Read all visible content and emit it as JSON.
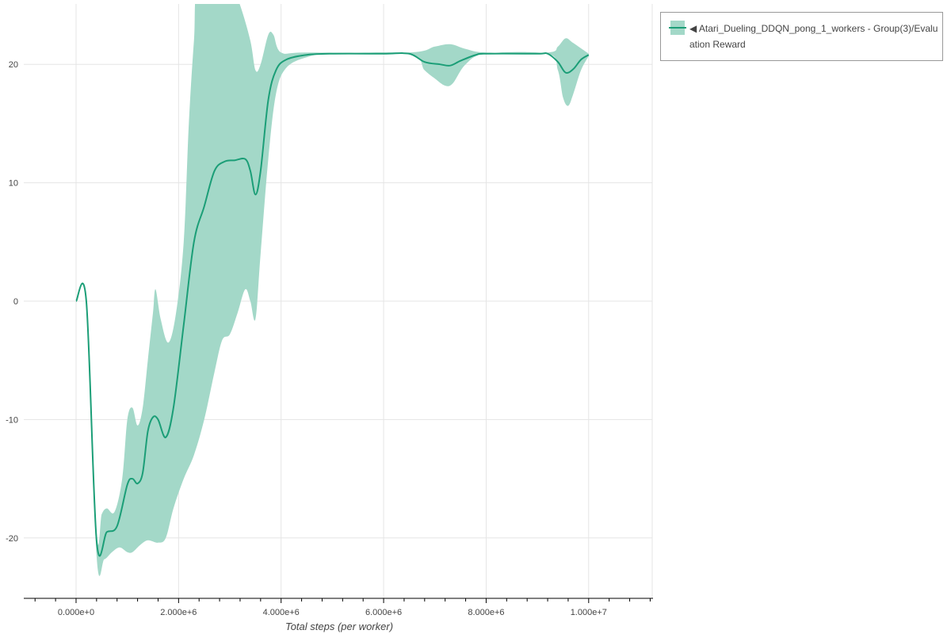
{
  "chart_data": {
    "type": "area",
    "title": "",
    "xlabel": "Total steps (per worker)",
    "ylabel": "",
    "xlim": [
      -1020000,
      11240000
    ],
    "ylim": [
      -25.1,
      25.1
    ],
    "grid": true,
    "legend_placement": "outside-top-right",
    "x_ticks": [
      0,
      2000000,
      4000000,
      6000000,
      8000000,
      10000000
    ],
    "x_tick_labels": [
      "0.000e+0",
      "2.000e+6",
      "4.000e+6",
      "6.000e+6",
      "8.000e+6",
      "1.000e+7"
    ],
    "y_ticks": [
      -20,
      -10,
      0,
      10,
      20
    ],
    "y_tick_labels": [
      "-20",
      "-10",
      "0",
      "10",
      "20"
    ],
    "colors": {
      "line": "#1b9e77",
      "band": "#a3d8c8"
    },
    "series": [
      {
        "name": "◀ Atari_Dueling_DDQN_pong_1_workers - Group(3)/Evaluation Reward",
        "mean": [
          [
            0,
            0
          ],
          [
            200000,
            0
          ],
          [
            400000,
            -20.2
          ],
          [
            600000,
            -19.5
          ],
          [
            800000,
            -19
          ],
          [
            1000000,
            -15.5
          ],
          [
            1100000,
            -15
          ],
          [
            1200000,
            -15.4
          ],
          [
            1300000,
            -14.5
          ],
          [
            1400000,
            -11
          ],
          [
            1500000,
            -9.8
          ],
          [
            1600000,
            -10
          ],
          [
            1750000,
            -11.5
          ],
          [
            1900000,
            -9
          ],
          [
            2100000,
            -2
          ],
          [
            2300000,
            5
          ],
          [
            2500000,
            8
          ],
          [
            2700000,
            11
          ],
          [
            2900000,
            11.8
          ],
          [
            3100000,
            11.9
          ],
          [
            3300000,
            12
          ],
          [
            3400000,
            11
          ],
          [
            3500000,
            9
          ],
          [
            3600000,
            11
          ],
          [
            3750000,
            17
          ],
          [
            3900000,
            19.5
          ],
          [
            4100000,
            20.4
          ],
          [
            4500000,
            20.8
          ],
          [
            5000000,
            20.9
          ],
          [
            6000000,
            20.9
          ],
          [
            6500000,
            20.9
          ],
          [
            6800000,
            20.2
          ],
          [
            7100000,
            20
          ],
          [
            7300000,
            19.9
          ],
          [
            7500000,
            20.3
          ],
          [
            7800000,
            20.8
          ],
          [
            8000000,
            20.9
          ],
          [
            9000000,
            20.9
          ],
          [
            9200000,
            20.9
          ],
          [
            9400000,
            20.2
          ],
          [
            9550000,
            19.3
          ],
          [
            9700000,
            19.6
          ],
          [
            9850000,
            20.4
          ],
          [
            10000000,
            20.8
          ]
        ],
        "upper": [
          [
            0,
            0
          ],
          [
            200000,
            0
          ],
          [
            400000,
            -19.5
          ],
          [
            500000,
            -18
          ],
          [
            600000,
            -17.5
          ],
          [
            750000,
            -17.8
          ],
          [
            900000,
            -15
          ],
          [
            1000000,
            -10
          ],
          [
            1100000,
            -9
          ],
          [
            1200000,
            -10.5
          ],
          [
            1300000,
            -9
          ],
          [
            1400000,
            -5
          ],
          [
            1500000,
            -1
          ],
          [
            1550000,
            1
          ],
          [
            1650000,
            -1.5
          ],
          [
            1800000,
            -3.5
          ],
          [
            1950000,
            -1
          ],
          [
            2100000,
            5
          ],
          [
            2200000,
            15
          ],
          [
            2300000,
            22
          ],
          [
            2400000,
            27
          ],
          [
            3000000,
            27
          ],
          [
            3200000,
            25
          ],
          [
            3400000,
            22
          ],
          [
            3500000,
            19.5
          ],
          [
            3600000,
            20
          ],
          [
            3750000,
            22.5
          ],
          [
            3850000,
            22.5
          ],
          [
            4000000,
            21
          ],
          [
            4500000,
            21
          ],
          [
            6500000,
            21
          ],
          [
            7000000,
            21.5
          ],
          [
            7300000,
            21.7
          ],
          [
            7600000,
            21.3
          ],
          [
            8000000,
            21
          ],
          [
            9200000,
            21
          ],
          [
            9400000,
            21.5
          ],
          [
            9550000,
            22.2
          ],
          [
            9700000,
            21.8
          ],
          [
            10000000,
            20.9
          ]
        ],
        "lower": [
          [
            0,
            0
          ],
          [
            200000,
            0
          ],
          [
            400000,
            -21.5
          ],
          [
            550000,
            -21.8
          ],
          [
            700000,
            -21.2
          ],
          [
            850000,
            -20.8
          ],
          [
            1000000,
            -21.2
          ],
          [
            1100000,
            -21.2
          ],
          [
            1250000,
            -20.6
          ],
          [
            1400000,
            -20.2
          ],
          [
            1600000,
            -20.4
          ],
          [
            1750000,
            -20
          ],
          [
            1900000,
            -17.5
          ],
          [
            2100000,
            -15
          ],
          [
            2300000,
            -13
          ],
          [
            2500000,
            -10
          ],
          [
            2700000,
            -6
          ],
          [
            2850000,
            -3.3
          ],
          [
            3000000,
            -2.8
          ],
          [
            3150000,
            -1
          ],
          [
            3300000,
            1
          ],
          [
            3400000,
            0
          ],
          [
            3500000,
            -1.5
          ],
          [
            3600000,
            4
          ],
          [
            3750000,
            12
          ],
          [
            3900000,
            17.5
          ],
          [
            4100000,
            19.7
          ],
          [
            4500000,
            20.6
          ],
          [
            5000000,
            20.9
          ],
          [
            6500000,
            20.9
          ],
          [
            6800000,
            19.5
          ],
          [
            7000000,
            18.8
          ],
          [
            7200000,
            18.2
          ],
          [
            7350000,
            18.4
          ],
          [
            7600000,
            20
          ],
          [
            8000000,
            20.9
          ],
          [
            9200000,
            20.9
          ],
          [
            9400000,
            19.5
          ],
          [
            9500000,
            17.2
          ],
          [
            9600000,
            16.5
          ],
          [
            9700000,
            17.5
          ],
          [
            9850000,
            19.5
          ],
          [
            10000000,
            20.7
          ]
        ]
      }
    ]
  },
  "legend": {
    "label": "◀ Atari_Dueling_DDQN_pong_1_workers - Group(3)/Evaluation Reward"
  }
}
